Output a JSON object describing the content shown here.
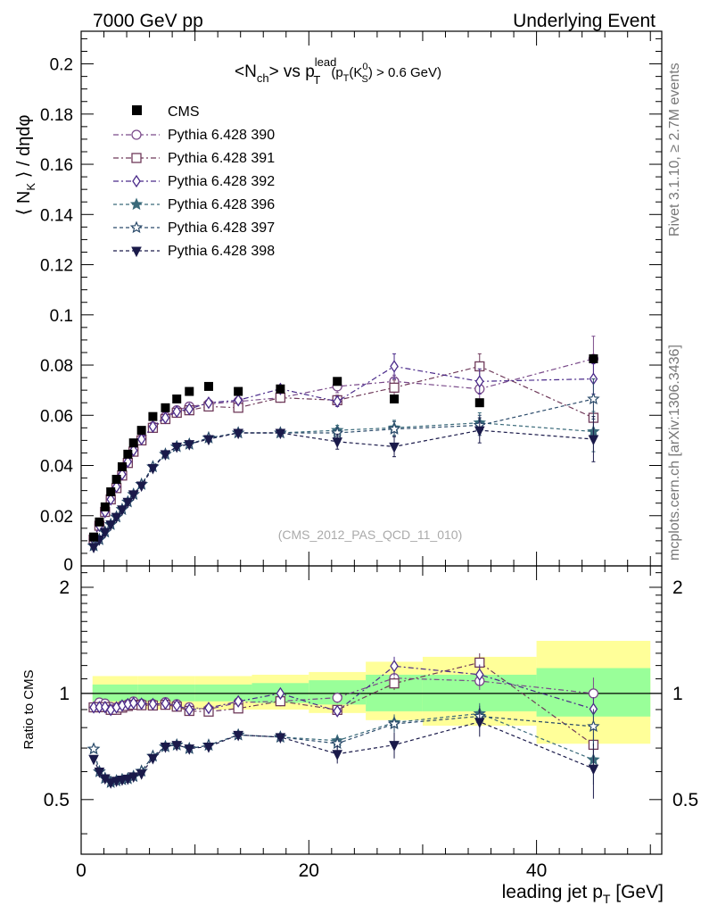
{
  "header": {
    "energy_label": "7000 GeV pp",
    "analysis_label": "Underlying Event"
  },
  "side_labels": {
    "rivet": "Rivet 3.1.10, ≥ 2.7M events",
    "mcplots": "mcplots.cern.ch [arXiv:1306.3436]"
  },
  "watermark": "(CMS_2012_PAS_QCD_11_010)",
  "chart_data": {
    "type": "scatter",
    "title": {
      "main": "<N",
      "sub1": "ch",
      "mid": "> vs p",
      "sup": "lead",
      "sub2": "T",
      "cut": "(p",
      "cut_sub": "T",
      "cut_k": "(K",
      "cut_k_sup": "0",
      "cut_k_sub": "S",
      "cut_end": ") > 0.6 GeV)"
    },
    "ylabel": {
      "pre": "⟨ N",
      "sub": "K",
      "post": " ⟩ / dηdφ"
    },
    "xlabel": {
      "pre": "leading jet p",
      "sub": "T",
      "post": " [GeV]"
    },
    "ratio_ylabel": "Ratio to CMS",
    "xlim": [
      0,
      51
    ],
    "ylim": [
      0,
      0.213
    ],
    "ratio_ylim": [
      0.35,
      2.3
    ],
    "x_ticks": [
      "0",
      "20",
      "40"
    ],
    "y_ticks": [
      "0.02",
      "0.04",
      "0.06",
      "0.08",
      "0.1",
      "0.12",
      "0.14",
      "0.16",
      "0.18",
      "0.2"
    ],
    "y_zero_label": "0",
    "ratio_ticks": [
      "0.5",
      "1",
      "2"
    ],
    "colors": {
      "data": "#000000",
      "band_inner": "#99ff99",
      "band_outer": "#ffff99",
      "p390": "#7a4a8a",
      "p391": "#6f3a5a",
      "p392": "#4a2a8a",
      "p396": "#3a6a7a",
      "p397": "#2a4a6a",
      "p398": "#1a1a4a"
    },
    "data_points": {
      "name": "CMS",
      "x": [
        1.1,
        1.6,
        2.1,
        2.6,
        3.1,
        3.6,
        4.1,
        4.6,
        5.3,
        6.3,
        7.4,
        8.4,
        9.5,
        11.2,
        13.8,
        17.5,
        22.5,
        27.5,
        35,
        45
      ],
      "y": [
        0.0115,
        0.0175,
        0.0235,
        0.0295,
        0.0345,
        0.0395,
        0.0445,
        0.049,
        0.054,
        0.0595,
        0.063,
        0.0665,
        0.0695,
        0.0715,
        0.0695,
        0.0705,
        0.0735,
        0.0665,
        0.065,
        0.0825
      ]
    },
    "band": {
      "edges": [
        1,
        5,
        10,
        15,
        20,
        25,
        30,
        40,
        50
      ],
      "inner": [
        [
          0.95,
          1.06
        ],
        [
          0.95,
          1.06
        ],
        [
          0.95,
          1.06
        ],
        [
          0.94,
          1.07
        ],
        [
          0.93,
          1.09
        ],
        [
          0.89,
          1.13
        ],
        [
          0.89,
          1.13
        ],
        [
          0.86,
          1.18
        ]
      ],
      "outer": [
        [
          0.9,
          1.12
        ],
        [
          0.9,
          1.12
        ],
        [
          0.9,
          1.12
        ],
        [
          0.9,
          1.13
        ],
        [
          0.88,
          1.15
        ],
        [
          0.84,
          1.23
        ],
        [
          0.81,
          1.27
        ],
        [
          0.72,
          1.41
        ]
      ]
    },
    "series": [
      {
        "name": "Pythia 6.428 390",
        "marker": "circle",
        "dash": "6,3,2,3",
        "x": [
          1.1,
          1.6,
          2.1,
          2.6,
          3.1,
          3.6,
          4.1,
          4.6,
          5.3,
          6.3,
          7.4,
          8.4,
          9.5,
          11.2,
          13.8,
          17.5,
          22.5,
          27.5,
          35,
          45
        ],
        "y": [
          0.0105,
          0.0165,
          0.022,
          0.027,
          0.0315,
          0.0365,
          0.0415,
          0.0465,
          0.0505,
          0.0555,
          0.0595,
          0.062,
          0.0635,
          0.0645,
          0.0655,
          0.067,
          0.0715,
          0.0735,
          0.0705,
          0.0825
        ],
        "err": [
          0,
          0,
          0,
          0,
          0,
          0,
          0,
          0,
          0,
          0,
          0,
          0,
          0,
          0,
          0.001,
          0.0015,
          0.0025,
          0.0025,
          0.004,
          0.009
        ]
      },
      {
        "name": "Pythia 6.428 391",
        "marker": "square",
        "dash": "6,3,2,3",
        "x": [
          1.1,
          1.6,
          2.1,
          2.6,
          3.1,
          3.6,
          4.1,
          4.6,
          5.3,
          6.3,
          7.4,
          8.4,
          9.5,
          11.2,
          13.8,
          17.5,
          22.5,
          27.5,
          35,
          45
        ],
        "y": [
          0.0105,
          0.016,
          0.0215,
          0.0265,
          0.031,
          0.036,
          0.041,
          0.0455,
          0.05,
          0.055,
          0.0585,
          0.061,
          0.062,
          0.0635,
          0.063,
          0.067,
          0.066,
          0.071,
          0.0795,
          0.059
        ],
        "err": [
          0,
          0,
          0,
          0,
          0,
          0,
          0,
          0,
          0,
          0,
          0,
          0,
          0,
          0,
          0.001,
          0.0015,
          0.002,
          0.003,
          0.005,
          0.007
        ]
      },
      {
        "name": "Pythia 6.428 392",
        "marker": "diamond",
        "dash": "6,3,2,3",
        "x": [
          1.1,
          1.6,
          2.1,
          2.6,
          3.1,
          3.6,
          4.1,
          4.6,
          5.3,
          6.3,
          7.4,
          8.4,
          9.5,
          11.2,
          13.8,
          17.5,
          22.5,
          27.5,
          35,
          45
        ],
        "y": [
          0.0105,
          0.016,
          0.0215,
          0.0265,
          0.0315,
          0.0365,
          0.0415,
          0.046,
          0.0505,
          0.0555,
          0.059,
          0.0615,
          0.0625,
          0.065,
          0.066,
          0.0705,
          0.0655,
          0.0795,
          0.0735,
          0.0745
        ],
        "err": [
          0,
          0,
          0,
          0,
          0,
          0,
          0,
          0,
          0,
          0,
          0,
          0,
          0,
          0,
          0.001,
          0.0015,
          0.002,
          0.005,
          0.005,
          0.006
        ]
      },
      {
        "name": "Pythia 6.428 396",
        "marker": "star",
        "dash": "4,3",
        "x": [
          1.1,
          1.6,
          2.1,
          2.6,
          3.1,
          3.6,
          4.1,
          4.6,
          5.3,
          6.3,
          7.4,
          8.4,
          9.5,
          11.2,
          13.8,
          17.5,
          22.5,
          27.5,
          35,
          45
        ],
        "y": [
          0.008,
          0.0105,
          0.0135,
          0.0165,
          0.0195,
          0.0225,
          0.0255,
          0.0285,
          0.0325,
          0.0395,
          0.0445,
          0.0475,
          0.0485,
          0.051,
          0.053,
          0.053,
          0.054,
          0.055,
          0.057,
          0.0535
        ],
        "err": [
          0,
          0,
          0,
          0,
          0,
          0,
          0,
          0,
          0,
          0,
          0,
          0,
          0,
          0,
          0.001,
          0.0012,
          0.002,
          0.003,
          0.004,
          0.008
        ]
      },
      {
        "name": "Pythia 6.428 397",
        "marker": "star-open",
        "dash": "4,3",
        "x": [
          1.1,
          1.6,
          2.1,
          2.6,
          3.1,
          3.6,
          4.1,
          4.6,
          5.3,
          6.3,
          7.4,
          8.4,
          9.5,
          11.2,
          13.8,
          17.5,
          22.5,
          27.5,
          35,
          45
        ],
        "y": [
          0.008,
          0.0105,
          0.0135,
          0.0165,
          0.0195,
          0.0225,
          0.0255,
          0.0285,
          0.0325,
          0.0395,
          0.0445,
          0.0475,
          0.0485,
          0.051,
          0.053,
          0.053,
          0.053,
          0.0545,
          0.056,
          0.0665
        ],
        "err": [
          0,
          0,
          0,
          0,
          0,
          0,
          0,
          0,
          0,
          0,
          0,
          0,
          0,
          0,
          0.001,
          0.0012,
          0.002,
          0.003,
          0.004,
          0.008
        ]
      },
      {
        "name": "Pythia 6.428 398",
        "marker": "triangle-down",
        "dash": "4,3",
        "x": [
          1.1,
          1.6,
          2.1,
          2.6,
          3.1,
          3.6,
          4.1,
          4.6,
          5.3,
          6.3,
          7.4,
          8.4,
          9.5,
          11.2,
          13.8,
          17.5,
          22.5,
          27.5,
          35,
          45
        ],
        "y": [
          0.0075,
          0.0105,
          0.0135,
          0.0165,
          0.0195,
          0.0225,
          0.0255,
          0.0285,
          0.032,
          0.039,
          0.0445,
          0.0475,
          0.0485,
          0.0505,
          0.053,
          0.053,
          0.0495,
          0.0475,
          0.054,
          0.0505
        ],
        "err": [
          0,
          0,
          0,
          0,
          0,
          0,
          0,
          0,
          0,
          0,
          0,
          0,
          0,
          0,
          0.001,
          0.0012,
          0.003,
          0.004,
          0.005,
          0.009
        ]
      }
    ]
  }
}
